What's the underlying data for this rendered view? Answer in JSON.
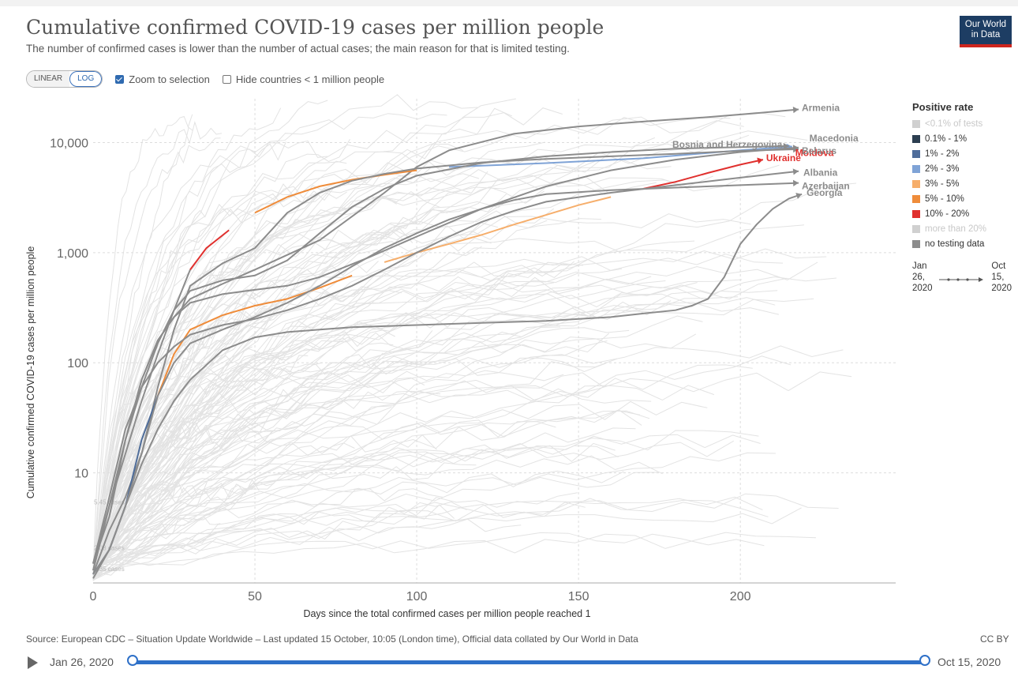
{
  "header": {
    "title": "Cumulative confirmed COVID-19 cases per million people",
    "subtitle": "The number of confirmed cases is lower than the number of actual cases; the main reason for that is limited testing.",
    "logo_line1": "Our World",
    "logo_line2": "in Data"
  },
  "controls": {
    "linear_label": "LINEAR",
    "log_label": "LOG",
    "active_scale": "LOG",
    "zoom_label": "Zoom to selection",
    "zoom_checked": true,
    "hide_label": "Hide countries < 1 million people",
    "hide_checked": false
  },
  "legend": {
    "title": "Positive rate",
    "items": [
      {
        "label": "<0.1% of tests",
        "color": "#d0d0d0",
        "muted": true
      },
      {
        "label": "0.1% - 1%",
        "color": "#2c3e50",
        "muted": false
      },
      {
        "label": "1% - 2%",
        "color": "#4f6d9a",
        "muted": false
      },
      {
        "label": "2% - 3%",
        "color": "#7fa3d6",
        "muted": false
      },
      {
        "label": "3% - 5%",
        "color": "#f6ae6b",
        "muted": false
      },
      {
        "label": "5% - 10%",
        "color": "#ef8c3a",
        "muted": false
      },
      {
        "label": "10% - 20%",
        "color": "#e0302e",
        "muted": false
      },
      {
        "label": "more than 20%",
        "color": "#d0d0d0",
        "muted": true
      },
      {
        "label": "no testing data",
        "color": "#8c8c8c",
        "muted": false
      }
    ],
    "time_start_l1": "Jan",
    "time_start_l2": "26,",
    "time_start_l3": "2020",
    "time_end_l1": "Oct",
    "time_end_l2": "15,",
    "time_end_l3": "2020"
  },
  "chart_data": {
    "type": "line",
    "scale": "log",
    "xlabel": "Days since the total confirmed cases per million people reached 1",
    "ylabel": "Cumulative confirmed COVID-19 cases per million people",
    "xlim": [
      0,
      248
    ],
    "ylim": [
      1,
      25000
    ],
    "x_ticks": [
      0,
      50,
      100,
      150,
      200
    ],
    "y_ticks": [
      10,
      100,
      1000,
      10000
    ],
    "y_tick_labels": [
      "10",
      "100",
      "1,000",
      "10,000"
    ],
    "start_markers": [
      "5.45 cases",
      "2.08 cases",
      "1.35 cases"
    ],
    "series": [
      {
        "name": "Armenia",
        "label_color": "#8c8c8c",
        "bold": false,
        "points": [
          [
            0,
            1.5
          ],
          [
            5,
            4
          ],
          [
            10,
            20
          ],
          [
            15,
            70
          ],
          [
            20,
            160
          ],
          [
            25,
            260
          ],
          [
            30,
            380
          ],
          [
            40,
            520
          ],
          [
            50,
            700
          ],
          [
            70,
            1300
          ],
          [
            90,
            3500
          ],
          [
            100,
            6000
          ],
          [
            110,
            8500
          ],
          [
            130,
            12000
          ],
          [
            150,
            14000
          ],
          [
            170,
            15500
          ],
          [
            190,
            17000
          ],
          [
            205,
            18500
          ],
          [
            218,
            20000
          ]
        ],
        "segments": [
          {
            "from": 0,
            "to": 218,
            "color": "#8c8c8c"
          }
        ]
      },
      {
        "name": "Moldova",
        "label_color": "#e0302e",
        "bold": true,
        "points": [
          [
            0,
            1.5
          ],
          [
            5,
            5
          ],
          [
            10,
            15
          ],
          [
            15,
            45
          ],
          [
            20,
            120
          ],
          [
            25,
            300
          ],
          [
            30,
            700
          ],
          [
            35,
            1100
          ],
          [
            42,
            1600
          ],
          [
            50,
            2300
          ],
          [
            60,
            3200
          ],
          [
            70,
            4000
          ],
          [
            80,
            4600
          ],
          [
            90,
            5100
          ],
          [
            100,
            5600
          ],
          [
            110,
            6000
          ],
          [
            140,
            6500
          ],
          [
            170,
            7200
          ],
          [
            200,
            8500
          ],
          [
            216,
            9200
          ]
        ],
        "segments": [
          {
            "from": 0,
            "to": 30,
            "color": "#8c8c8c"
          },
          {
            "from": 30,
            "to": 45,
            "color": "#e0302e"
          },
          {
            "from": 45,
            "to": 105,
            "color": "#ef8c3a"
          },
          {
            "from": 105,
            "to": 216,
            "color": "#7fa3d6"
          }
        ]
      },
      {
        "name": "Bosnia and Herzegovina",
        "label_color": "#8c8c8c",
        "bold": false,
        "points": [
          [
            0,
            1.3
          ],
          [
            5,
            5
          ],
          [
            10,
            20
          ],
          [
            15,
            70
          ],
          [
            20,
            160
          ],
          [
            25,
            260
          ],
          [
            30,
            350
          ],
          [
            40,
            420
          ],
          [
            50,
            460
          ],
          [
            60,
            500
          ],
          [
            70,
            600
          ],
          [
            85,
            900
          ],
          [
            100,
            1400
          ],
          [
            120,
            2500
          ],
          [
            140,
            4000
          ],
          [
            160,
            5600
          ],
          [
            180,
            7000
          ],
          [
            200,
            8200
          ],
          [
            218,
            9000
          ]
        ],
        "segments": [
          {
            "from": 0,
            "to": 218,
            "color": "#8c8c8c"
          }
        ]
      },
      {
        "name": "Macedonia",
        "label_color": "#8c8c8c",
        "bold": false,
        "points": [
          [
            0,
            1.3
          ],
          [
            5,
            5
          ],
          [
            10,
            20
          ],
          [
            15,
            60
          ],
          [
            20,
            150
          ],
          [
            25,
            300
          ],
          [
            30,
            450
          ],
          [
            40,
            560
          ],
          [
            50,
            620
          ],
          [
            60,
            850
          ],
          [
            70,
            1500
          ],
          [
            80,
            2600
          ],
          [
            90,
            3800
          ],
          [
            100,
            5000
          ],
          [
            120,
            6500
          ],
          [
            140,
            7500
          ],
          [
            160,
            8200
          ],
          [
            180,
            8800
          ],
          [
            200,
            9100
          ],
          [
            215,
            9300
          ]
        ],
        "segments": [
          {
            "from": 0,
            "to": 215,
            "color": "#8c8c8c"
          }
        ]
      },
      {
        "name": "Belarus",
        "label_color": "#8c8c8c",
        "bold": false,
        "points": [
          [
            0,
            1.2
          ],
          [
            5,
            3
          ],
          [
            10,
            6
          ],
          [
            15,
            15
          ],
          [
            20,
            60
          ],
          [
            25,
            200
          ],
          [
            30,
            500
          ],
          [
            40,
            800
          ],
          [
            50,
            1100
          ],
          [
            60,
            2300
          ],
          [
            70,
            3500
          ],
          [
            80,
            4500
          ],
          [
            90,
            5200
          ],
          [
            100,
            5800
          ],
          [
            120,
            6600
          ],
          [
            140,
            7100
          ],
          [
            160,
            7500
          ],
          [
            180,
            7900
          ],
          [
            200,
            8400
          ],
          [
            218,
            8700
          ]
        ],
        "segments": [
          {
            "from": 0,
            "to": 218,
            "color": "#8c8c8c"
          }
        ]
      },
      {
        "name": "Ukraine",
        "label_color": "#e0302e",
        "bold": true,
        "points": [
          [
            0,
            1.2
          ],
          [
            5,
            2
          ],
          [
            10,
            5
          ],
          [
            15,
            20
          ],
          [
            20,
            50
          ],
          [
            25,
            120
          ],
          [
            30,
            200
          ],
          [
            40,
            270
          ],
          [
            50,
            330
          ],
          [
            60,
            380
          ],
          [
            70,
            480
          ],
          [
            80,
            620
          ],
          [
            90,
            820
          ],
          [
            100,
            1000
          ],
          [
            110,
            1200
          ],
          [
            120,
            1450
          ],
          [
            130,
            1800
          ],
          [
            140,
            2200
          ],
          [
            150,
            2700
          ],
          [
            160,
            3200
          ],
          [
            170,
            3800
          ],
          [
            180,
            4400
          ],
          [
            190,
            5300
          ],
          [
            200,
            6300
          ],
          [
            207,
            7000
          ]
        ],
        "segments": [
          {
            "from": 0,
            "to": 20,
            "color": "#4f6d9a"
          },
          {
            "from": 20,
            "to": 85,
            "color": "#ef8c3a"
          },
          {
            "from": 85,
            "to": 165,
            "color": "#f6ae6b"
          },
          {
            "from": 165,
            "to": 207,
            "color": "#e0302e"
          }
        ]
      },
      {
        "name": "Albania",
        "label_color": "#8c8c8c",
        "bold": false,
        "points": [
          [
            0,
            1.5
          ],
          [
            5,
            6
          ],
          [
            10,
            25
          ],
          [
            15,
            60
          ],
          [
            20,
            100
          ],
          [
            25,
            140
          ],
          [
            30,
            180
          ],
          [
            40,
            220
          ],
          [
            50,
            250
          ],
          [
            60,
            300
          ],
          [
            70,
            380
          ],
          [
            80,
            500
          ],
          [
            90,
            700
          ],
          [
            100,
            1000
          ],
          [
            110,
            1400
          ],
          [
            120,
            1900
          ],
          [
            130,
            2400
          ],
          [
            140,
            2900
          ],
          [
            160,
            3500
          ],
          [
            180,
            4100
          ],
          [
            200,
            4800
          ],
          [
            218,
            5500
          ]
        ],
        "segments": [
          {
            "from": 0,
            "to": 218,
            "color": "#8c8c8c"
          }
        ]
      },
      {
        "name": "Azerbaijan",
        "label_color": "#8c8c8c",
        "bold": false,
        "points": [
          [
            0,
            1.2
          ],
          [
            5,
            2
          ],
          [
            10,
            5
          ],
          [
            15,
            15
          ],
          [
            20,
            50
          ],
          [
            25,
            100
          ],
          [
            30,
            150
          ],
          [
            40,
            200
          ],
          [
            50,
            260
          ],
          [
            60,
            350
          ],
          [
            70,
            500
          ],
          [
            80,
            750
          ],
          [
            90,
            1100
          ],
          [
            100,
            1500
          ],
          [
            110,
            2000
          ],
          [
            120,
            2500
          ],
          [
            130,
            3000
          ],
          [
            140,
            3400
          ],
          [
            160,
            3700
          ],
          [
            180,
            3900
          ],
          [
            200,
            4100
          ],
          [
            218,
            4300
          ]
        ],
        "segments": [
          {
            "from": 0,
            "to": 218,
            "color": "#8c8c8c"
          }
        ]
      },
      {
        "name": "Georgia",
        "label_color": "#8c8c8c",
        "bold": false,
        "points": [
          [
            0,
            1.1
          ],
          [
            5,
            2
          ],
          [
            10,
            5
          ],
          [
            15,
            12
          ],
          [
            20,
            25
          ],
          [
            25,
            45
          ],
          [
            30,
            70
          ],
          [
            40,
            130
          ],
          [
            50,
            170
          ],
          [
            60,
            190
          ],
          [
            70,
            200
          ],
          [
            80,
            210
          ],
          [
            90,
            215
          ],
          [
            100,
            220
          ],
          [
            120,
            230
          ],
          [
            140,
            240
          ],
          [
            160,
            260
          ],
          [
            170,
            280
          ],
          [
            180,
            300
          ],
          [
            185,
            330
          ],
          [
            190,
            380
          ],
          [
            195,
            600
          ],
          [
            200,
            1200
          ],
          [
            205,
            1800
          ],
          [
            210,
            2500
          ],
          [
            215,
            3100
          ],
          [
            219,
            3400
          ]
        ],
        "segments": [
          {
            "from": 0,
            "to": 219,
            "color": "#8c8c8c"
          }
        ]
      }
    ]
  },
  "footer": {
    "source": "Source: European CDC – Situation Update Worldwide – Last updated 15 October, 10:05 (London time), Official data collated by Our World in Data",
    "license": "CC BY"
  },
  "timeline": {
    "start": "Jan 26, 2020",
    "end": "Oct 15, 2020"
  }
}
